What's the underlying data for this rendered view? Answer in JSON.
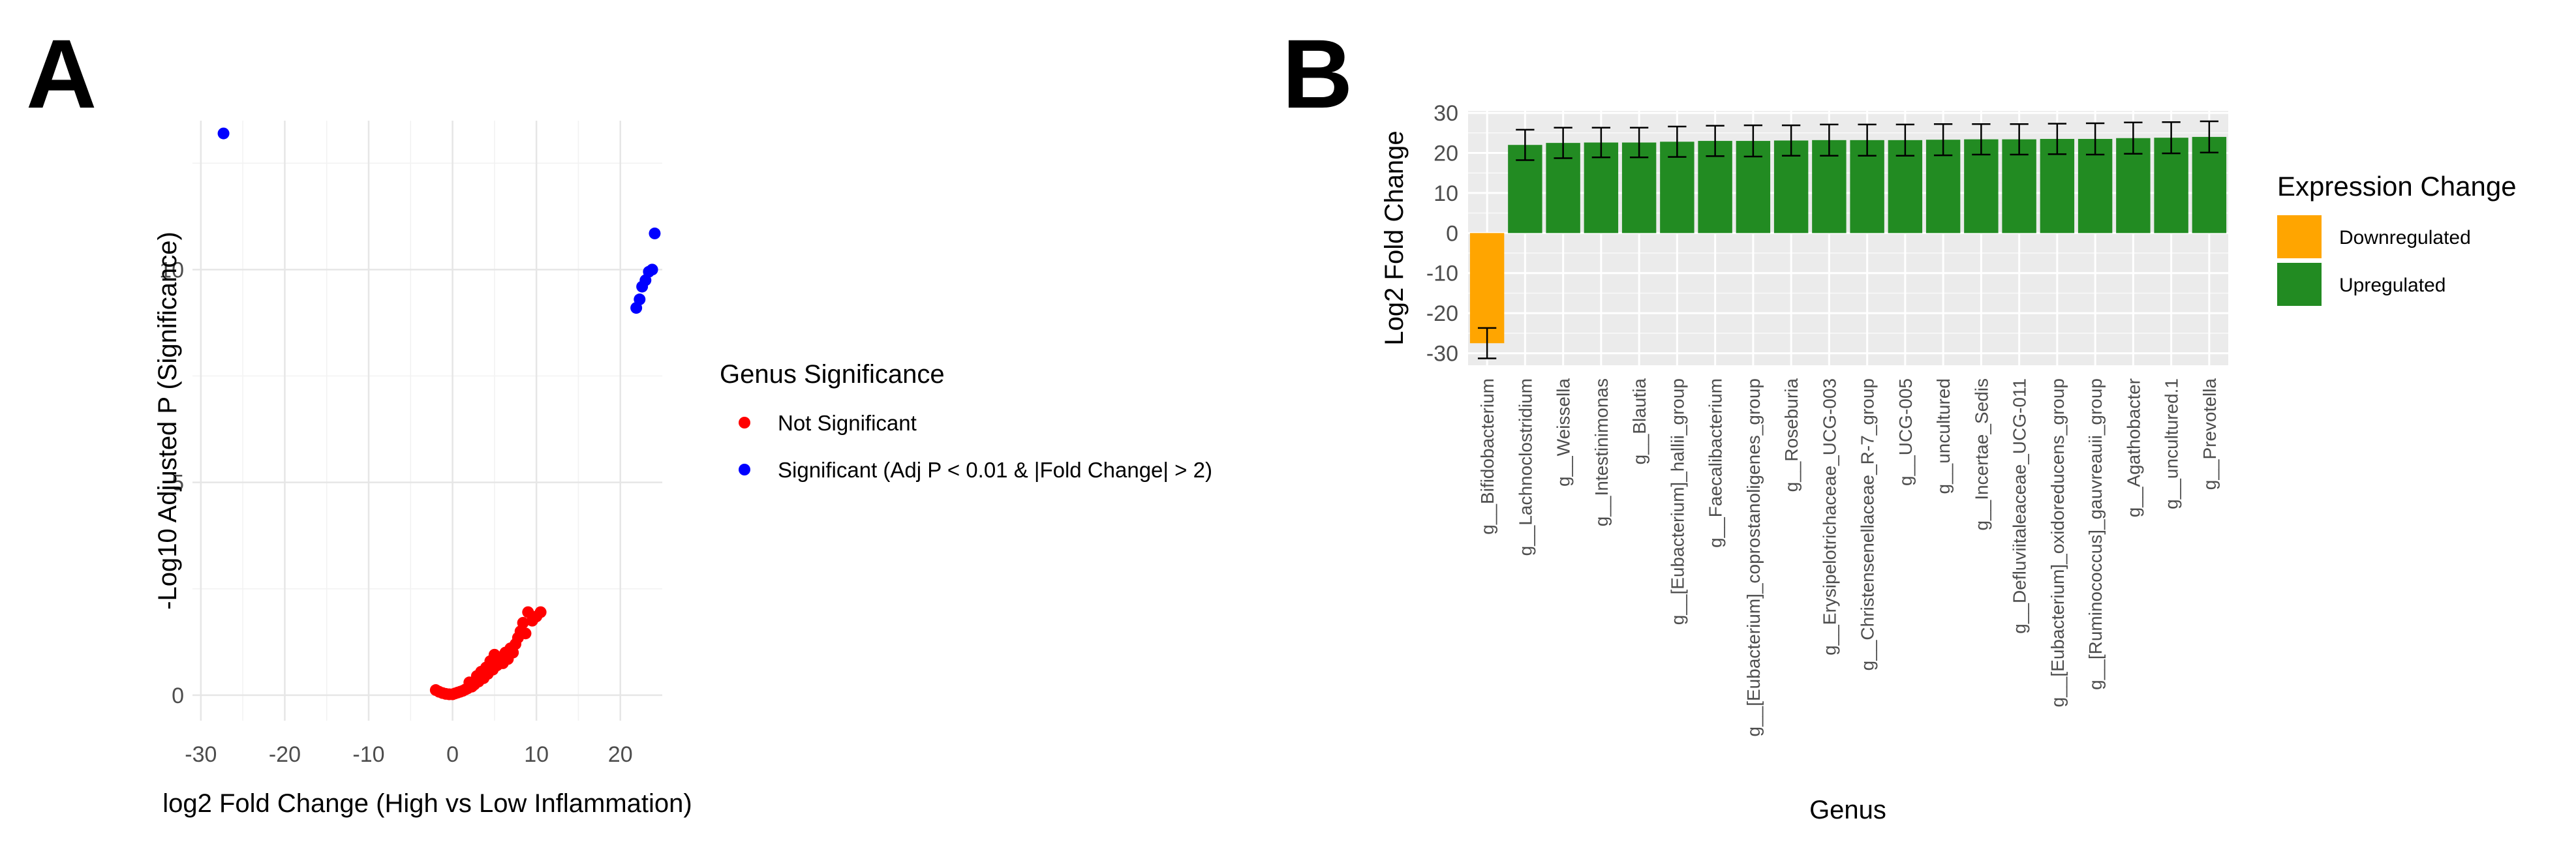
{
  "panels": {
    "a": {
      "letter": "A"
    },
    "b": {
      "letter": "B"
    }
  },
  "chart_data": [
    {
      "type": "scatter",
      "panel": "A",
      "title": "",
      "xlabel": "log2 Fold Change (High vs Low Inflammation)",
      "ylabel": "-Log10 Adjusted P (Significance)",
      "xlim": [
        -31,
        25
      ],
      "ylim": [
        -0.6,
        13.5
      ],
      "xticks": [
        -30,
        -20,
        -10,
        0,
        10,
        20
      ],
      "yticks": [
        0,
        5,
        10
      ],
      "grid": true,
      "legend": {
        "title": "Genus Significance",
        "placement": "right",
        "entries": [
          {
            "label": "Not Significant",
            "color": "#ff0000"
          },
          {
            "label": "Significant (Adj P < 0.01 & |Fold Change| > 2)",
            "color": "#0000ff"
          }
        ]
      },
      "series": [
        {
          "name": "Not Significant",
          "color": "#ff0000",
          "points": [
            [
              -2.0,
              0.12
            ],
            [
              -1.6,
              0.08
            ],
            [
              -1.2,
              0.05
            ],
            [
              -0.8,
              0.03
            ],
            [
              -0.4,
              0.02
            ],
            [
              0.0,
              0.02
            ],
            [
              0.3,
              0.04
            ],
            [
              0.6,
              0.06
            ],
            [
              0.9,
              0.08
            ],
            [
              1.2,
              0.1
            ],
            [
              1.5,
              0.13
            ],
            [
              1.8,
              0.16
            ],
            [
              2.0,
              0.3
            ],
            [
              2.3,
              0.2
            ],
            [
              2.6,
              0.25
            ],
            [
              2.9,
              0.45
            ],
            [
              3.1,
              0.32
            ],
            [
              3.4,
              0.55
            ],
            [
              3.7,
              0.4
            ],
            [
              4.0,
              0.65
            ],
            [
              4.2,
              0.5
            ],
            [
              4.5,
              0.8
            ],
            [
              4.8,
              0.6
            ],
            [
              5.0,
              0.95
            ],
            [
              5.3,
              0.7
            ],
            [
              5.5,
              0.85
            ],
            [
              5.8,
              0.9
            ],
            [
              6.0,
              0.75
            ],
            [
              6.3,
              1.0
            ],
            [
              6.6,
              0.85
            ],
            [
              6.9,
              1.1
            ],
            [
              7.2,
              1.0
            ],
            [
              7.5,
              1.2
            ],
            [
              7.8,
              1.35
            ],
            [
              8.1,
              1.5
            ],
            [
              8.4,
              1.7
            ],
            [
              8.7,
              1.45
            ],
            [
              9.0,
              1.95
            ],
            [
              9.5,
              1.75
            ],
            [
              10.0,
              1.85
            ],
            [
              10.5,
              1.95
            ]
          ]
        },
        {
          "name": "Significant (Adj P < 0.01 & |Fold Change| > 2)",
          "color": "#0000ff",
          "points": [
            [
              -27.3,
              13.2
            ],
            [
              21.9,
              9.1
            ],
            [
              22.3,
              9.3
            ],
            [
              22.6,
              9.6
            ],
            [
              23.0,
              9.75
            ],
            [
              23.4,
              9.95
            ],
            [
              23.8,
              10.0
            ],
            [
              24.1,
              10.85
            ]
          ]
        }
      ]
    },
    {
      "type": "bar",
      "panel": "B",
      "title": "",
      "xlabel": "Genus",
      "ylabel": "Log2 Fold Change",
      "ylim": [
        -33,
        30.5
      ],
      "yticks": [
        -30,
        -20,
        -10,
        0,
        10,
        20,
        30
      ],
      "grid": true,
      "error_bars": true,
      "legend": {
        "title": "Expression Change",
        "placement": "right",
        "entries": [
          {
            "label": "Downregulated",
            "color": "#ffa500"
          },
          {
            "label": "Upregulated",
            "color": "#228b22"
          }
        ]
      },
      "categories": [
        "g__Bifidobacterium",
        "g__Lachnoclostridium",
        "g__Weissella",
        "g__Intestinimonas",
        "g__Blautia",
        "g__[Eubacterium]_hallii_group",
        "g__Faecalibacterium",
        "g__[Eubacterium]_coprostanoligenes_group",
        "g__Roseburia",
        "g__Erysipelotrichaceae_UCG-003",
        "g__Christensenellaceae_R-7_group",
        "g__UCG-005",
        "g__uncultured",
        "g__Incertae_Sedis",
        "g__Defluviitaleaceae_UCG-011",
        "g__[Eubacterium]_oxidoreducens_group",
        "g__[Ruminococcus]_gauvreauii_group",
        "g__Agathobacter",
        "g__uncultured.1",
        "g__Prevotella"
      ],
      "values": [
        -27.5,
        22.0,
        22.5,
        22.6,
        22.6,
        22.8,
        23.0,
        23.0,
        23.1,
        23.2,
        23.2,
        23.2,
        23.3,
        23.4,
        23.4,
        23.5,
        23.5,
        23.7,
        23.8,
        24.0
      ],
      "errors": [
        3.8,
        3.8,
        3.8,
        3.7,
        3.7,
        3.8,
        3.8,
        3.9,
        3.8,
        3.9,
        3.9,
        3.9,
        3.9,
        3.8,
        3.8,
        3.8,
        3.9,
        3.9,
        3.9,
        3.9
      ],
      "colors": [
        "#ffa500",
        "#228b22",
        "#228b22",
        "#228b22",
        "#228b22",
        "#228b22",
        "#228b22",
        "#228b22",
        "#228b22",
        "#228b22",
        "#228b22",
        "#228b22",
        "#228b22",
        "#228b22",
        "#228b22",
        "#228b22",
        "#228b22",
        "#228b22",
        "#228b22",
        "#228b22"
      ]
    }
  ]
}
